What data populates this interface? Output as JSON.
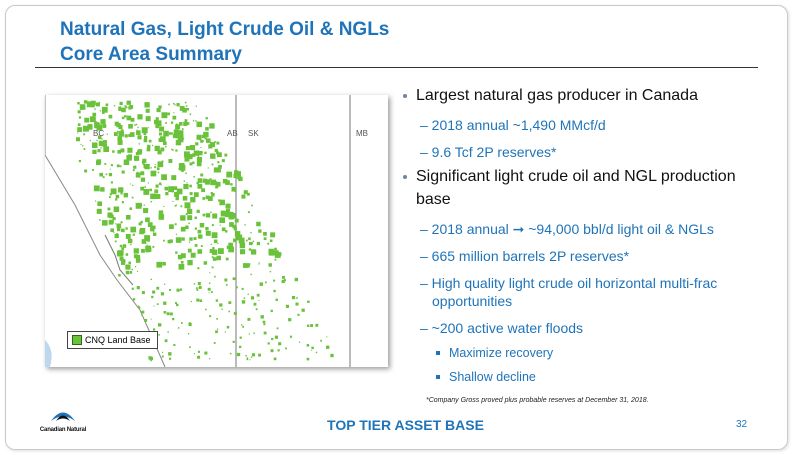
{
  "slide": {
    "title": [
      "Natural Gas, Light Crude Oil & NGLs",
      "Core Area Summary"
    ],
    "map": {
      "provinces": [
        "BC",
        "AB",
        "SK",
        "MB"
      ],
      "legend": "CNQ Land Base"
    },
    "bullets": [
      {
        "level": 1,
        "text": "Largest natural gas producer in Canada"
      },
      {
        "level": 2,
        "text": "– 2018 annual ~1,490 MMcf/d"
      },
      {
        "level": 2,
        "text": "– 9.6 Tcf 2P reserves*"
      },
      {
        "level": 1,
        "text": "Significant light crude oil and NGL production base"
      },
      {
        "level": 2,
        "text": "– 2018 annual ➞ ~94,000 bbl/d light oil & NGLs"
      },
      {
        "level": 2,
        "text": "– 665 million barrels 2P reserves*"
      },
      {
        "level": 2,
        "text": "– High quality light crude oil horizontal multi-frac opportunities"
      },
      {
        "level": 2,
        "text": "– ~200 active water floods"
      },
      {
        "level": 3,
        "text": "Maximize recovery"
      },
      {
        "level": 3,
        "text": "Shallow decline"
      }
    ],
    "footnote": "*Company Gross proved plus probable reserves at December 31, 2018.",
    "footer": "TOP TIER ASSET BASE",
    "page_number": "32",
    "logo": "Canadian Natural"
  }
}
